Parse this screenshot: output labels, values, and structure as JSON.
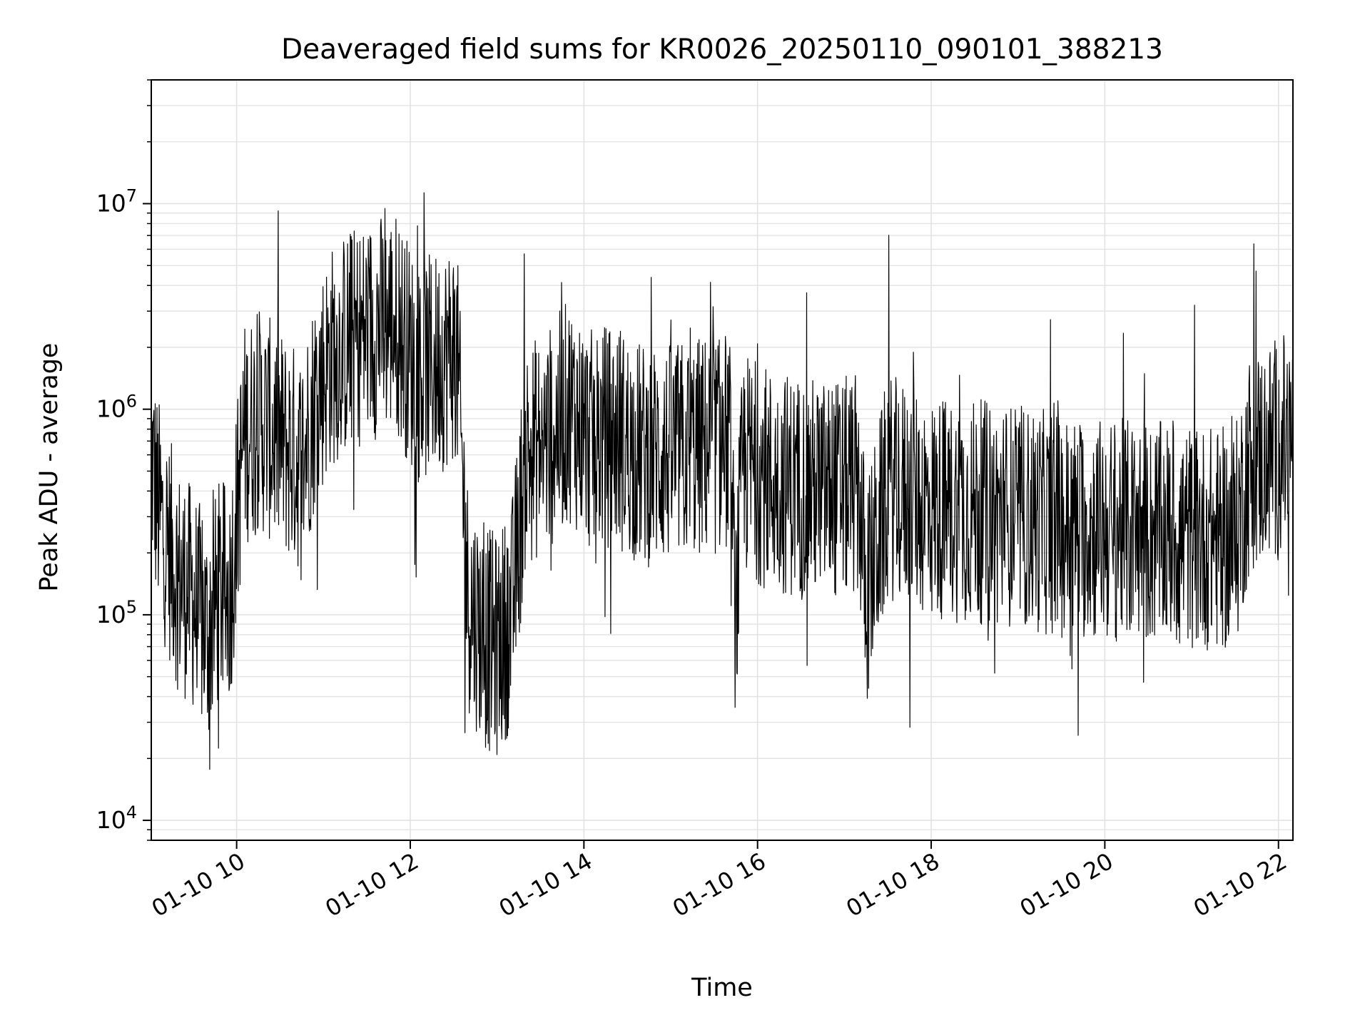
{
  "chart_data": {
    "type": "line",
    "title": "Deaveraged field sums for KR0026_20250110_090101_388213",
    "xlabel": "Time",
    "ylabel": "Peak ADU - average",
    "yscale": "log",
    "grid": true,
    "xlim": [
      "01-10 09:01",
      "01-10 22:10"
    ],
    "ylim": [
      8000,
      40000000
    ],
    "xticks": [
      {
        "hour": 10,
        "label": "01-10 10"
      },
      {
        "hour": 12,
        "label": "01-10 12"
      },
      {
        "hour": 14,
        "label": "01-10 14"
      },
      {
        "hour": 16,
        "label": "01-10 16"
      },
      {
        "hour": 18,
        "label": "01-10 18"
      },
      {
        "hour": 20,
        "label": "01-10 20"
      },
      {
        "hour": 22,
        "label": "01-10 22"
      }
    ],
    "yticks": [
      {
        "exp": 4,
        "value": 10000
      },
      {
        "exp": 5,
        "value": 100000
      },
      {
        "exp": 6,
        "value": 1000000
      },
      {
        "exp": 7,
        "value": 10000000
      }
    ],
    "series": [
      {
        "color": "#000000",
        "x": [
          "01-10 09:01",
          "01-10 09:05",
          "01-10 09:10",
          "01-10 09:20",
          "01-10 09:30",
          "01-10 09:40",
          "01-10 09:48",
          "01-10 09:55",
          "01-10 10:05",
          "01-10 10:15",
          "01-10 10:30",
          "01-10 10:45",
          "01-10 10:55",
          "01-10 11:05",
          "01-10 11:20",
          "01-10 11:35",
          "01-10 11:50",
          "01-10 12:05",
          "01-10 12:20",
          "01-10 12:32",
          "01-10 12:40",
          "01-10 12:50",
          "01-10 13:00",
          "01-10 13:10",
          "01-10 13:20",
          "01-10 13:35",
          "01-10 13:50",
          "01-10 14:05",
          "01-10 14:20",
          "01-10 14:40",
          "01-10 15:00",
          "01-10 15:20",
          "01-10 15:40",
          "01-10 15:45",
          "01-10 15:50",
          "01-10 16:10",
          "01-10 16:30",
          "01-10 16:50",
          "01-10 17:10",
          "01-10 17:15",
          "01-10 17:30",
          "01-10 17:45",
          "01-10 18:00",
          "01-10 18:30",
          "01-10 19:00",
          "01-10 19:30",
          "01-10 20:00",
          "01-10 20:30",
          "01-10 21:00",
          "01-10 21:30",
          "01-10 21:40",
          "01-10 22:00",
          "01-10 22:10"
        ],
        "y": [
          600000,
          350000,
          250000,
          150000,
          120000,
          80000,
          130000,
          120000,
          750000,
          900000,
          700000,
          550000,
          1200000,
          1800000,
          2200000,
          2500000,
          2700000,
          1500000,
          1700000,
          2000000,
          120000,
          80000,
          70000,
          100000,
          600000,
          700000,
          1000000,
          700000,
          750000,
          600000,
          600000,
          650000,
          700000,
          100000,
          550000,
          450000,
          420000,
          400000,
          420000,
          120000,
          420000,
          380000,
          330000,
          320000,
          300000,
          270000,
          260000,
          250000,
          240000,
          230000,
          550000,
          650000,
          700000
        ]
      }
    ]
  }
}
